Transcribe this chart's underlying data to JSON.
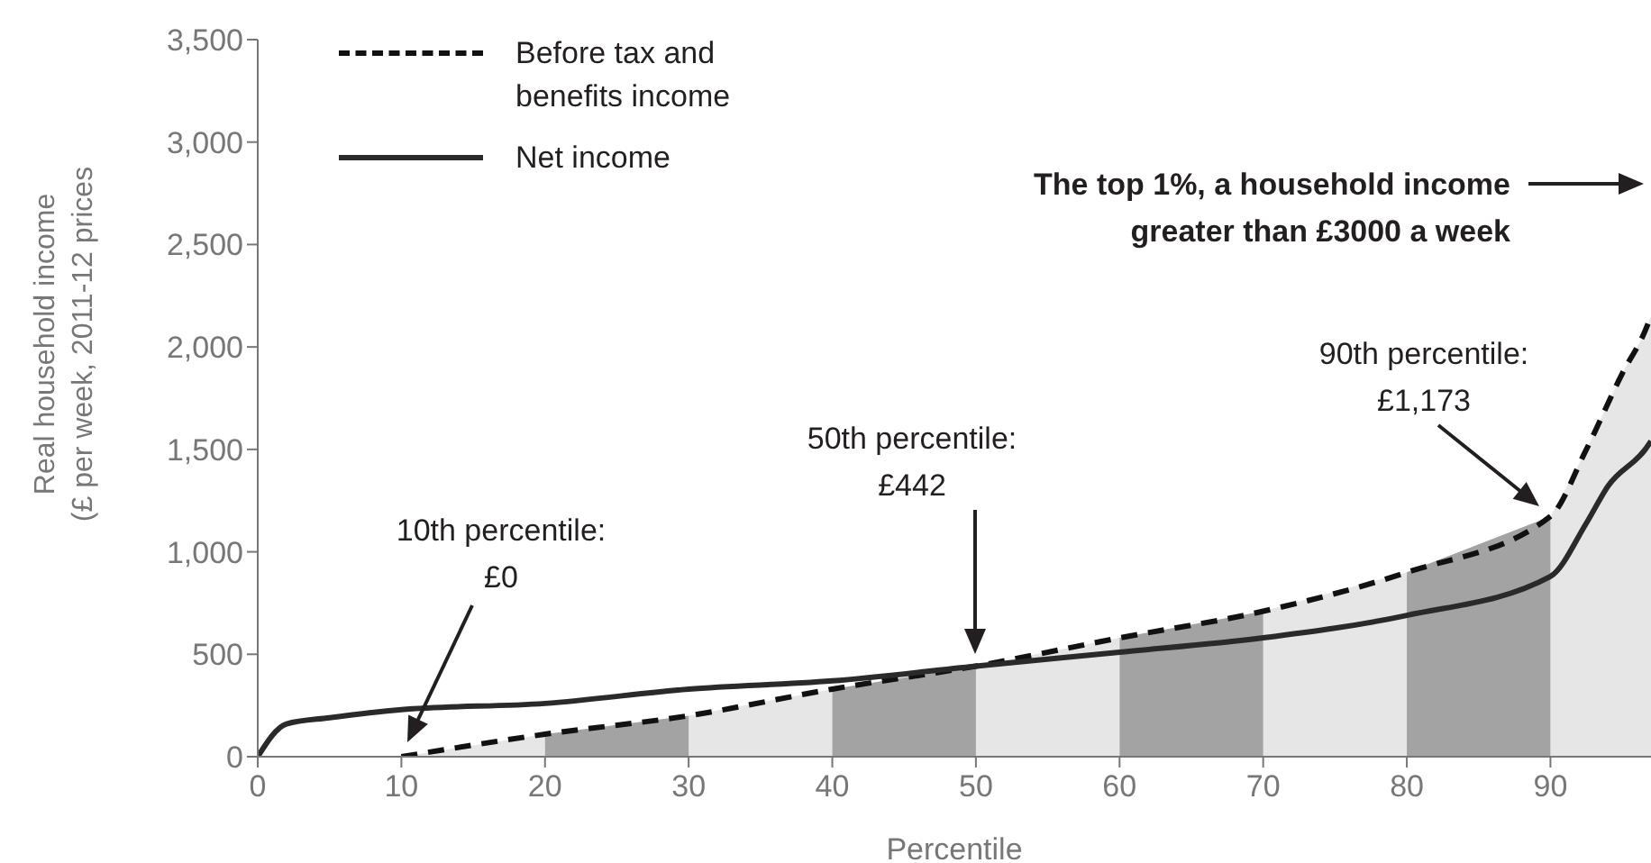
{
  "chart_data": {
    "type": "line",
    "xlabel": "Percentile",
    "ylabel": "Real household income\n(£ per week, 2011-12 prices",
    "xlim": [
      0,
      97
    ],
    "xticks": [
      0,
      10,
      20,
      30,
      40,
      50,
      60,
      70,
      80,
      90
    ],
    "ylim": [
      0,
      3500
    ],
    "yticks": [
      0,
      500,
      {
        "value": 1000,
        "label": "1,000"
      },
      {
        "value": 1500,
        "label": "1,500"
      },
      {
        "value": 2000,
        "label": "2,000"
      },
      {
        "value": 2500,
        "label": "2,500"
      },
      {
        "value": 3000,
        "label": "3,000"
      },
      {
        "value": 3500,
        "label": "3,500"
      }
    ],
    "grid": false,
    "legend": "top left",
    "marker": "none",
    "series": [
      {
        "name": "Before tax and benefits income",
        "color": "#111111",
        "line_style": "dashed",
        "x": [
          10,
          20,
          30,
          40,
          50,
          60,
          70,
          80,
          90,
          92.5,
          95,
          96.6,
          97
        ],
        "values": [
          0,
          110,
          200,
          330,
          442,
          580,
          710,
          900,
          1173,
          1500,
          1870,
          2080,
          2150
        ]
      },
      {
        "name": "Net income",
        "color": "#2a2a2a",
        "line_style": "solid",
        "x": [
          0,
          2,
          5,
          10,
          20,
          30,
          40,
          50,
          60,
          70,
          80,
          90,
          92.5,
          94,
          96.6,
          97
        ],
        "values": [
          0,
          160,
          190,
          230,
          260,
          330,
          370,
          442,
          510,
          580,
          690,
          880,
          1140,
          1320,
          1500,
          1540
        ]
      },
      {
        "type": "area",
        "color": "#e6e6e6",
        "x": [
          10,
          20
        ],
        "values": [
          0,
          110
        ]
      },
      {
        "type": "area",
        "color": "#e6e6e6",
        "x": [
          30,
          40
        ],
        "values": [
          200,
          330
        ]
      },
      {
        "type": "area",
        "color": "#e6e6e6",
        "x": [
          50,
          60
        ],
        "values": [
          442,
          580
        ]
      },
      {
        "type": "area",
        "color": "#e6e6e6",
        "x": [
          70,
          80
        ],
        "values": [
          710,
          900
        ]
      },
      {
        "type": "area",
        "color": "#e6e6e6",
        "x": [
          90,
          92.5,
          95,
          96.6,
          97
        ],
        "values": [
          1173,
          1500,
          1870,
          2080,
          2150
        ]
      },
      {
        "type": "area",
        "color": "#a3a3a3",
        "x": [
          20,
          30
        ],
        "values": [
          110,
          200
        ]
      },
      {
        "type": "area",
        "color": "#a3a3a3",
        "x": [
          40,
          50
        ],
        "values": [
          330,
          442
        ]
      },
      {
        "type": "area",
        "color": "#a3a3a3",
        "x": [
          60,
          70
        ],
        "values": [
          580,
          710
        ]
      },
      {
        "type": "area",
        "color": "#a3a3a3",
        "x": [
          80,
          90
        ],
        "values": [
          900,
          1173
        ]
      }
    ],
    "annotations": [
      "10th percentile:\n£0",
      "50th percentile:\n£442",
      "90th percentile:\n£1,173",
      "The top 1%, a household income\ngreater than £3000 a week"
    ]
  }
}
